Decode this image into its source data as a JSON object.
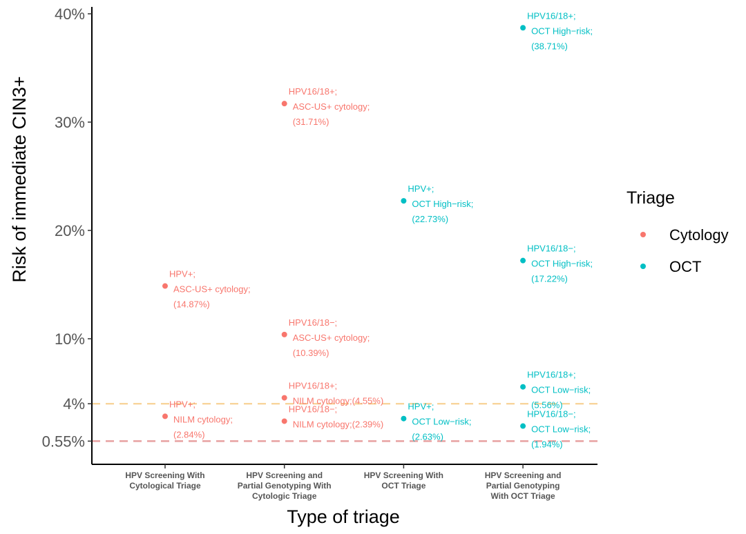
{
  "chart_data": {
    "type": "scatter",
    "xlabel": "Type of triage",
    "ylabel": "Risk of immediate CIN3+",
    "categories": [
      [
        "HPV Screening With",
        "Cytological Triage"
      ],
      [
        "HPV Screening and",
        "Partial Genotyping With",
        "Cytologic Triage"
      ],
      [
        "HPV Screening With",
        "OCT Triage"
      ],
      [
        "HPV Screening and",
        "Partial Genotyping",
        "With OCT Triage"
      ]
    ],
    "y_ticks": [
      {
        "value": 0.55,
        "label": "0.55%"
      },
      {
        "value": 4,
        "label": "4%"
      },
      {
        "value": 10,
        "label": "10%"
      },
      {
        "value": 20,
        "label": "20%"
      },
      {
        "value": 30,
        "label": "30%"
      },
      {
        "value": 40,
        "label": "40%"
      }
    ],
    "reference_lines": [
      {
        "value": 4,
        "color": "#F8D49A",
        "style": "dashed"
      },
      {
        "value": 0.55,
        "color": "#E8A0A0",
        "style": "dashed"
      }
    ],
    "legend": {
      "title": "Triage",
      "position": "right",
      "items": [
        {
          "name": "Cytology",
          "color": "#F8766D"
        },
        {
          "name": "OCT",
          "color": "#00BFC4"
        }
      ]
    },
    "series": [
      {
        "name": "Cytology",
        "color": "#F8766D",
        "points": [
          {
            "x": 0,
            "y": 14.87,
            "label": [
              "HPV+;",
              "ASC-US+ cytology;",
              "(14.87%)"
            ]
          },
          {
            "x": 0,
            "y": 2.84,
            "label": [
              "HPV+;",
              "NILM cytology;",
              "(2.84%)"
            ]
          },
          {
            "x": 1,
            "y": 31.71,
            "label": [
              "HPV16/18+;",
              "ASC-US+ cytology;",
              "(31.71%)"
            ]
          },
          {
            "x": 1,
            "y": 10.39,
            "label": [
              "HPV16/18−;",
              "ASC-US+ cytology;",
              "(10.39%)"
            ]
          },
          {
            "x": 1,
            "y": 4.55,
            "label": [
              "HPV16/18+;",
              "NILM cytology;(4.55%)"
            ]
          },
          {
            "x": 1,
            "y": 2.39,
            "label": [
              "HPV16/18−;",
              "NILM cytology;(2.39%)"
            ]
          }
        ]
      },
      {
        "name": "OCT",
        "color": "#00BFC4",
        "points": [
          {
            "x": 2,
            "y": 22.73,
            "label": [
              "HPV+;",
              "OCT High−risk;",
              "(22.73%)"
            ]
          },
          {
            "x": 2,
            "y": 2.63,
            "label": [
              "HPV+;",
              "OCT Low−risk;",
              "(2.63%)"
            ]
          },
          {
            "x": 3,
            "y": 38.71,
            "label": [
              "HPV16/18+;",
              "OCT High−risk;",
              "(38.71%)"
            ]
          },
          {
            "x": 3,
            "y": 17.22,
            "label": [
              "HPV16/18−;",
              "OCT High−risk;",
              "(17.22%)"
            ]
          },
          {
            "x": 3,
            "y": 5.56,
            "label": [
              "HPV16/18+;",
              "OCT Low−risk;",
              "(5.56%)"
            ]
          },
          {
            "x": 3,
            "y": 1.94,
            "label": [
              "HPV16/18−;",
              "OCT Low−risk;",
              "(1.94%)"
            ]
          }
        ]
      }
    ]
  }
}
